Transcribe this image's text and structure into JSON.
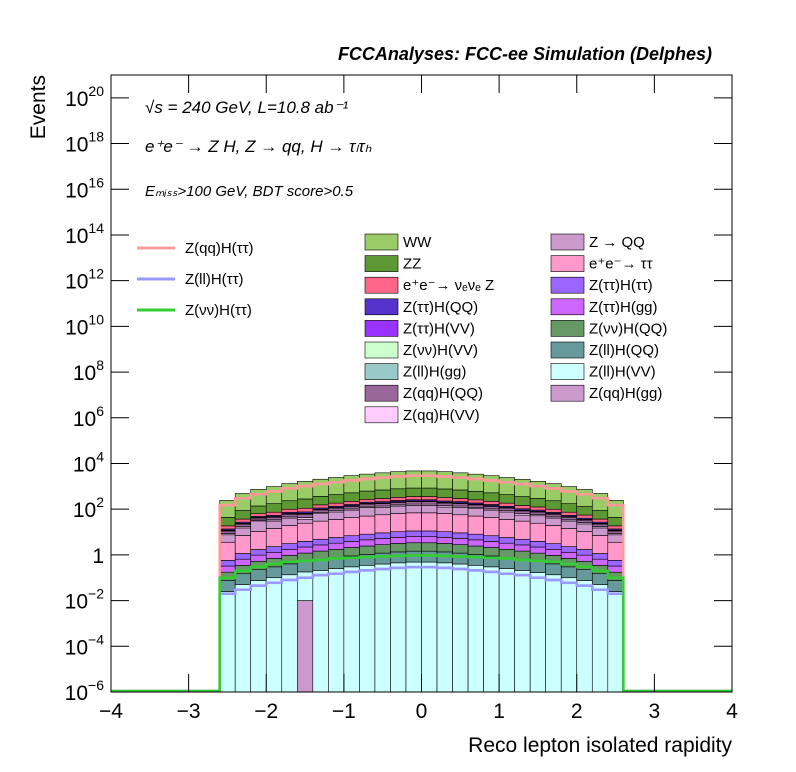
{
  "chart_data": {
    "type": "stacked-histogram",
    "title": "FCCAnalyses: FCC-ee Simulation (Delphes)",
    "annotations": [
      "√s = 240 GeV, L=10.8 ab⁻¹",
      "e⁺e⁻ → Z H, Z → qq, H → τₗτₕ",
      "Eₘᵢₛₛ>100 GeV, BDT score>0.5"
    ],
    "xlabel": "Reco lepton isolated rapidity",
    "ylabel": "Events",
    "log_y": true,
    "xlim": [
      -4,
      4
    ],
    "xticks": [
      {
        "value": -4,
        "label": "−4"
      },
      {
        "value": -3,
        "label": "−3"
      },
      {
        "value": -2,
        "label": "−2"
      },
      {
        "value": -1,
        "label": "−1"
      },
      0,
      1,
      2,
      3,
      4
    ],
    "ylim": [
      1e-06,
      1e+21
    ],
    "yticks": [
      {
        "value": 1e-06,
        "label": "10",
        "sup": "−6"
      },
      {
        "value": 0.0001,
        "label": "10",
        "sup": "−4"
      },
      {
        "value": 0.01,
        "label": "10",
        "sup": "−2"
      },
      1,
      {
        "value": 100,
        "label": "10",
        "sup": "2"
      },
      {
        "value": 10000,
        "label": "10",
        "sup": "4"
      },
      {
        "value": 1000000,
        "label": "10",
        "sup": "6"
      },
      {
        "value": 100000000,
        "label": "10",
        "sup": "8"
      },
      {
        "value": 10000000000,
        "label": "10",
        "sup": "10"
      },
      {
        "value": 1000000000000,
        "label": "10",
        "sup": "12"
      },
      {
        "value": 100000000000000,
        "label": "10",
        "sup": "14"
      },
      {
        "value": 10000000000000000,
        "label": "10",
        "sup": "16"
      },
      {
        "value": 1000000000000000000,
        "label": "10",
        "sup": "18"
      },
      {
        "value": 1e+20,
        "label": "10",
        "sup": "20"
      }
    ],
    "bins": [
      -2.6,
      -2.4,
      -2.2,
      -2.0,
      -1.8,
      -1.6,
      -1.4,
      -1.2,
      -1.0,
      -0.8,
      -0.6,
      -0.4,
      -0.2,
      0,
      0.2,
      0.4,
      0.6,
      0.8,
      1.0,
      1.2,
      1.4,
      1.6,
      1.8,
      2.0,
      2.2,
      2.4,
      2.6
    ],
    "series": [
      {
        "name": "WW",
        "color": "#99cc66",
        "values": [
          200,
          400,
          600,
          800,
          1080,
          1360,
          1680,
          2000,
          2400,
          2800,
          3200,
          3600,
          3880,
          3880,
          3600,
          3200,
          2800,
          2400,
          2000,
          1680,
          1360,
          1080,
          800,
          600,
          400,
          200
        ]
      },
      {
        "name": "ZZ",
        "color": "#5c9933",
        "values": [
          25,
          50,
          75,
          100,
          135,
          170,
          210,
          250,
          300,
          350,
          400,
          450,
          485,
          485,
          450,
          400,
          350,
          300,
          250,
          210,
          170,
          135,
          100,
          75,
          50,
          25
        ]
      },
      {
        "name": "e⁺e⁻→ νₑνₑ Z",
        "color": "#ff6688",
        "values": [
          5,
          10,
          15,
          20,
          27,
          34,
          42,
          50,
          60,
          70,
          80,
          90,
          97,
          97,
          90,
          80,
          70,
          60,
          50,
          42,
          34,
          27,
          20,
          15,
          10,
          5
        ]
      },
      {
        "name": "Z(ττ)H(QQ)",
        "color": "#5533cc",
        "values": [
          1.5,
          3,
          4.5,
          6,
          8.1,
          10.2,
          12.6,
          15,
          18,
          21,
          24,
          27,
          29.1,
          29.1,
          27,
          24,
          21,
          18,
          15,
          12.6,
          10.2,
          8.1,
          6,
          4.5,
          3,
          1.5
        ]
      },
      {
        "name": "Z(ττ)H(VV)",
        "color": "#9933ff",
        "values": [
          0.5,
          1,
          1.5,
          2,
          2.7,
          3.4,
          4.2,
          5,
          6,
          7,
          8,
          9,
          9.7,
          9.7,
          9,
          8,
          7,
          6,
          5,
          4.2,
          3.4,
          2.7,
          2,
          1.5,
          1,
          0.5
        ]
      },
      {
        "name": "Z(νν)H(VV)",
        "color": "#ccffcc",
        "values": [
          0.25,
          0.5,
          0.75,
          1,
          1.35,
          1.7,
          2.1,
          2.5,
          3,
          3.5,
          4,
          4.5,
          4.85,
          4.85,
          4.5,
          4,
          3.5,
          3,
          2.5,
          2.1,
          1.7,
          1.35,
          1,
          0.75,
          0.5,
          0.25
        ]
      },
      {
        "name": "Z(ll)H(gg)",
        "color": "#99c9c9",
        "values": [
          0.3,
          0.35,
          0.4,
          0.45,
          0.5,
          0.55,
          0.6,
          0.65,
          0.7,
          0.75,
          0.78,
          0.8,
          0.8,
          0.8,
          0.8,
          0.78,
          0.75,
          0.7,
          0.65,
          0.6,
          0.55,
          0.5,
          0.45,
          0.4,
          0.35,
          0.3
        ]
      },
      {
        "name": "Z(qq)H(QQ)",
        "color": "#996699",
        "values": [
          2.5,
          5,
          7.5,
          10,
          13.5,
          17,
          21,
          25,
          30,
          35,
          40,
          45,
          48.5,
          48.5,
          45,
          40,
          35,
          30,
          25,
          21,
          17,
          13.5,
          10,
          7.5,
          5,
          2.5
        ]
      },
      {
        "name": "Z(qq)H(VV)",
        "color": "#ffccff",
        "values": [
          1,
          2,
          3,
          4,
          5.4,
          6.8,
          8.4,
          10,
          12,
          14,
          16,
          18,
          19.4,
          19.4,
          18,
          16,
          14,
          12,
          10,
          8.4,
          6.8,
          5.4,
          4,
          3,
          2,
          1
        ]
      },
      {
        "name": "Z → QQ",
        "color": "#cc99cc",
        "values": [
          4,
          8,
          20,
          16,
          21.6,
          12,
          33.6,
          40,
          48,
          70,
          64,
          72,
          77.6,
          77.6,
          60,
          64,
          56,
          48,
          40,
          25,
          27.2,
          21.6,
          16,
          12,
          8,
          4
        ]
      },
      {
        "name": "e⁺e⁻→ ττ",
        "color": "#ff99cc",
        "values": [
          3,
          6,
          9,
          12,
          16.2,
          20.4,
          25.2,
          30,
          36,
          42,
          48,
          54,
          58.2,
          58.2,
          54,
          48,
          42,
          36,
          30,
          25.2,
          20.4,
          16.2,
          12,
          9,
          6,
          3
        ]
      },
      {
        "name": "Z(ττ)H(ττ)",
        "color": "#9966ff",
        "values": [
          0.25,
          0.5,
          0.75,
          1,
          1.35,
          1.7,
          2.1,
          2.5,
          3,
          3.5,
          4,
          4.5,
          4.85,
          4.85,
          4.5,
          4,
          3.5,
          3,
          2.5,
          2.1,
          1.7,
          1.35,
          1,
          0.75,
          0.5,
          0.25
        ]
      },
      {
        "name": "Z(ττ)H(gg)",
        "color": "#cc66ff",
        "values": [
          0.15,
          0.3,
          0.45,
          0.6,
          0.81,
          1.02,
          1.26,
          1.5,
          1.8,
          2.1,
          2.4,
          2.7,
          2.91,
          2.91,
          2.7,
          2.4,
          2.1,
          1.8,
          1.5,
          1.26,
          1.02,
          0.81,
          0.6,
          0.45,
          0.3,
          0.15
        ]
      },
      {
        "name": "Z(νν)H(QQ)",
        "color": "#669966",
        "values": [
          0.1,
          0.2,
          0.3,
          0.4,
          0.54,
          0.68,
          0.84,
          1,
          1.2,
          1.4,
          1.6,
          1.8,
          1.94,
          1.94,
          1.8,
          1.6,
          1.4,
          1.2,
          1,
          0.84,
          0.68,
          0.54,
          0.4,
          0.3,
          0.2,
          0.1
        ]
      },
      {
        "name": "Z(ll)H(QQ)",
        "color": "#669999",
        "values": [
          0.05,
          0.1,
          0.15,
          0.2,
          0.27,
          0.34,
          0.42,
          0.5,
          0.6,
          0.7,
          0.8,
          0.9,
          0.97,
          0.97,
          0.9,
          0.8,
          0.7,
          0.6,
          0.5,
          0.42,
          0.34,
          0.27,
          0.2,
          0.15,
          0.1,
          0.05
        ]
      },
      {
        "name": "Z(ll)H(VV)",
        "color": "#ccffff",
        "values": [
          0.025,
          0.05,
          0.075,
          0.1,
          0.135,
          0.17,
          0.21,
          0.25,
          0.3,
          0.35,
          0.4,
          0.45,
          0.485,
          0.485,
          0.45,
          0.4,
          0.35,
          0.3,
          0.25,
          0.21,
          0.17,
          0.135,
          0.1,
          0.075,
          0.05,
          0.025
        ]
      },
      {
        "name": "Z(qq)H(gg)",
        "color": "#cc99cc",
        "values": [
          0,
          0,
          0,
          0,
          0,
          0.01,
          0,
          0,
          0,
          0,
          0,
          0,
          0,
          0,
          0,
          0,
          0,
          0,
          0,
          0,
          0,
          0,
          0,
          0,
          0,
          0
        ]
      }
    ],
    "signals": [
      {
        "name": "Z(qq)H(ττ)",
        "color": "#ff9999",
        "values": [
          150,
          300,
          450,
          600,
          810,
          1020,
          1260,
          1500,
          1800,
          2100,
          2400,
          2700,
          2910,
          2910,
          2700,
          2400,
          2100,
          1800,
          1500,
          1260,
          1020,
          810,
          600,
          450,
          300,
          150
        ]
      },
      {
        "name": "Z(ll)H(ττ)",
        "color": "#9999ff",
        "values": [
          0.02,
          0.03,
          0.045,
          0.06,
          0.08,
          0.1,
          0.13,
          0.15,
          0.18,
          0.21,
          0.24,
          0.27,
          0.29,
          0.29,
          0.27,
          0.24,
          0.21,
          0.18,
          0.15,
          0.13,
          0.1,
          0.08,
          0.06,
          0.045,
          0.03,
          0.02
        ]
      },
      {
        "name": "Z(νν)H(ττ)",
        "color": "#33cc33",
        "values": [
          0.1,
          0.2,
          0.3,
          0.4,
          0.5,
          0.55,
          0.6,
          0.7,
          0.75,
          0.8,
          0.85,
          0.9,
          0.95,
          0.95,
          0.9,
          0.85,
          0.8,
          0.75,
          0.7,
          0.6,
          0.55,
          0.5,
          0.4,
          0.3,
          0.2,
          0.1
        ]
      }
    ]
  }
}
